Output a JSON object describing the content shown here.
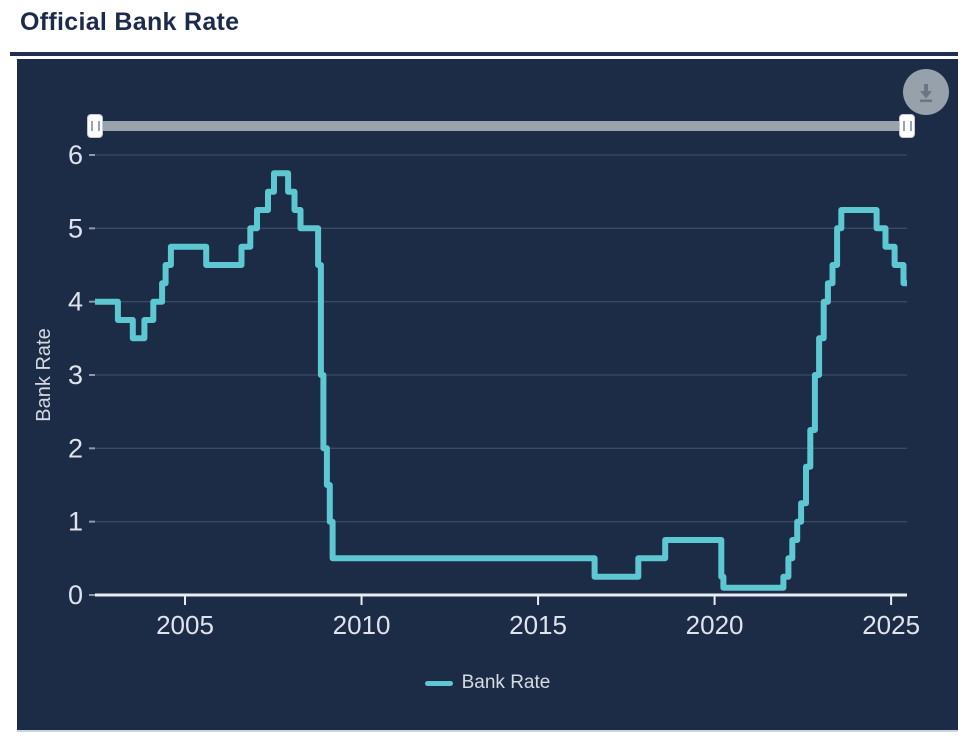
{
  "page": {
    "title": "Official Bank Rate"
  },
  "controls": {
    "download_button": "download",
    "range_slider": {
      "left_handle": "range start",
      "right_handle": "range end"
    }
  },
  "colors": {
    "accent_teal": "#5ec8d2",
    "card_background": "#1c2b46",
    "title_navy": "#1d2b4a",
    "gridline": "#56647e",
    "axis_line": "#e8edf3",
    "axis_label": "#dfe3ec",
    "axis_title": "#d4d9e2",
    "slider_track": "#99a3ae",
    "download_circle": "#97a1ac",
    "download_icon": "#6b7584"
  },
  "chart_data": {
    "type": "line",
    "step": "after",
    "title": "Official Bank Rate",
    "xlabel": "",
    "ylabel": "Bank Rate",
    "xlim": [
      2002.45,
      2025.45
    ],
    "ylim": [
      0,
      6
    ],
    "x_ticks": [
      2005,
      2010,
      2015,
      2020,
      2025
    ],
    "y_ticks": [
      0,
      1,
      2,
      3,
      4,
      5,
      6
    ],
    "grid": "horizontal",
    "legend_position": "bottom",
    "legend": [
      {
        "label": "Bank Rate",
        "color": "#5ec8d2"
      }
    ],
    "series": [
      {
        "name": "Bank Rate",
        "points": [
          [
            2002.45,
            4.0
          ],
          [
            2003.1,
            3.75
          ],
          [
            2003.52,
            3.5
          ],
          [
            2003.85,
            3.75
          ],
          [
            2004.1,
            4.0
          ],
          [
            2004.35,
            4.25
          ],
          [
            2004.45,
            4.5
          ],
          [
            2004.6,
            4.75
          ],
          [
            2005.6,
            4.5
          ],
          [
            2006.6,
            4.75
          ],
          [
            2006.85,
            5.0
          ],
          [
            2007.04,
            5.25
          ],
          [
            2007.35,
            5.5
          ],
          [
            2007.52,
            5.75
          ],
          [
            2007.92,
            5.5
          ],
          [
            2008.1,
            5.25
          ],
          [
            2008.27,
            5.0
          ],
          [
            2008.77,
            4.5
          ],
          [
            2008.85,
            3.0
          ],
          [
            2008.92,
            2.0
          ],
          [
            2009.02,
            1.5
          ],
          [
            2009.1,
            1.0
          ],
          [
            2009.18,
            0.5
          ],
          [
            2016.6,
            0.25
          ],
          [
            2017.84,
            0.5
          ],
          [
            2018.6,
            0.75
          ],
          [
            2020.19,
            0.25
          ],
          [
            2020.25,
            0.1
          ],
          [
            2021.95,
            0.25
          ],
          [
            2022.09,
            0.5
          ],
          [
            2022.2,
            0.75
          ],
          [
            2022.34,
            1.0
          ],
          [
            2022.45,
            1.25
          ],
          [
            2022.59,
            1.75
          ],
          [
            2022.71,
            2.25
          ],
          [
            2022.84,
            3.0
          ],
          [
            2022.96,
            3.5
          ],
          [
            2023.09,
            4.0
          ],
          [
            2023.21,
            4.25
          ],
          [
            2023.34,
            4.5
          ],
          [
            2023.47,
            5.0
          ],
          [
            2023.59,
            5.25
          ],
          [
            2024.59,
            5.0
          ],
          [
            2024.84,
            4.75
          ],
          [
            2025.1,
            4.5
          ],
          [
            2025.35,
            4.25
          ]
        ]
      }
    ]
  }
}
